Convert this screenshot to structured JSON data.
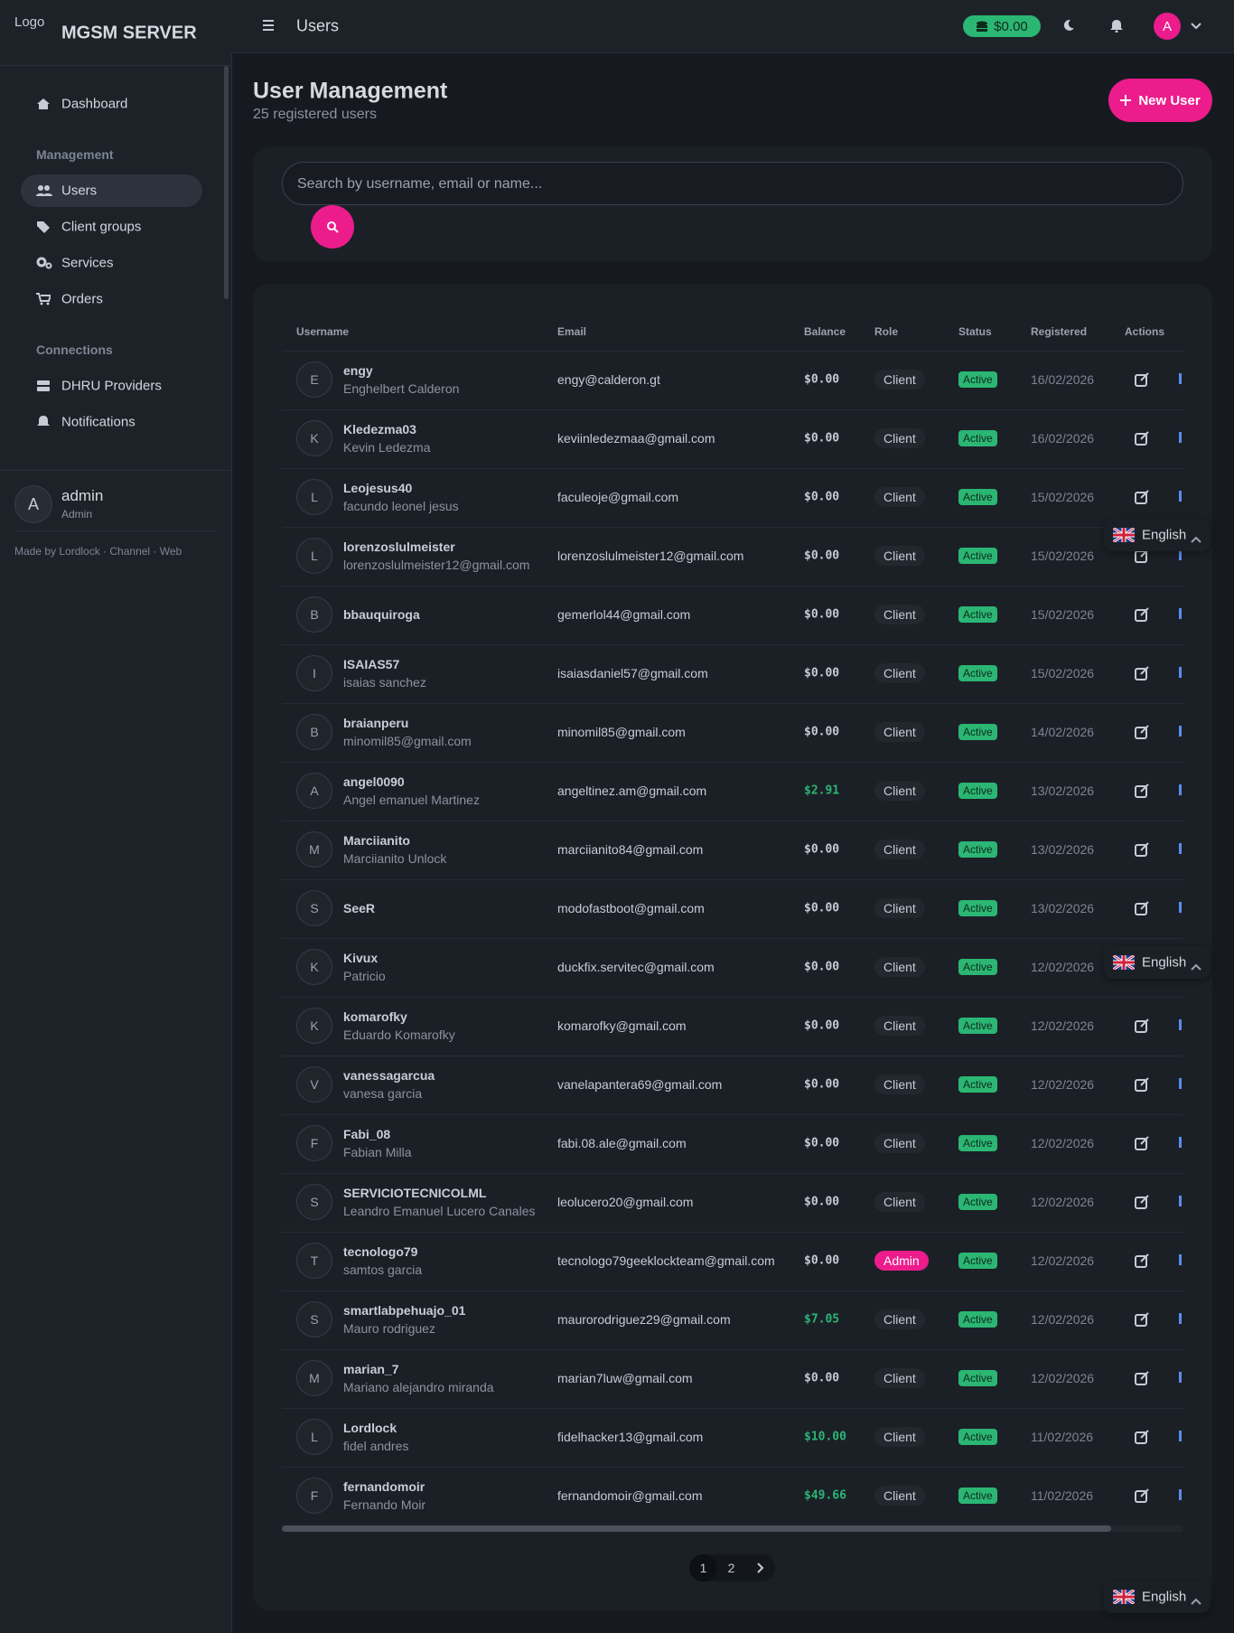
{
  "brand": {
    "logo_alt": "Logo",
    "name": "MGSM SERVER"
  },
  "topbar": {
    "title": "Users",
    "balance": "$0.00",
    "avatar": "A"
  },
  "sidebar": {
    "items": [
      {
        "label": "Dashboard"
      },
      {
        "section": "Management"
      },
      {
        "label": "Users",
        "active": true
      },
      {
        "label": "Client groups"
      },
      {
        "label": "Services"
      },
      {
        "label": "Orders"
      },
      {
        "section": "Connections"
      },
      {
        "label": "DHRU Providers"
      },
      {
        "label": "Notifications"
      }
    ]
  },
  "user": {
    "avatar": "A",
    "name": "admin",
    "role": "Admin"
  },
  "footer": {
    "credit": "Made by Lordlock · Channel · Web"
  },
  "page": {
    "title": "User Management",
    "subtitle": "25 registered users",
    "new_user": "New User",
    "search_placeholder": "Search by username, email or name..."
  },
  "table": {
    "columns": [
      "Username",
      "Email",
      "Balance",
      "Role",
      "Status",
      "Registered",
      "Actions"
    ],
    "rows": [
      {
        "initial": "E",
        "username": "engy",
        "name": "Enghelbert Calderon",
        "email": "engy@calderon.gt",
        "balance": "$0.00",
        "role": "Client",
        "status": "Active",
        "registered": "16/02/2026"
      },
      {
        "initial": "K",
        "username": "Kledezma03",
        "name": "Kevin Ledezma",
        "email": "keviinledezmaa@gmail.com",
        "balance": "$0.00",
        "role": "Client",
        "status": "Active",
        "registered": "16/02/2026"
      },
      {
        "initial": "L",
        "username": "Leojesus40",
        "name": "facundo leonel jesus",
        "email": "faculeoje@gmail.com",
        "balance": "$0.00",
        "role": "Client",
        "status": "Active",
        "registered": "15/02/2026"
      },
      {
        "initial": "L",
        "username": "lorenzoslulmeister",
        "name": "lorenzoslulmeister12@gmail.com",
        "email": "lorenzoslulmeister12@gmail.com",
        "balance": "$0.00",
        "role": "Client",
        "status": "Active",
        "registered": "15/02/2026"
      },
      {
        "initial": "B",
        "username": "bbauquiroga",
        "email": "gemerlol44@gmail.com",
        "balance": "$0.00",
        "role": "Client",
        "status": "Active",
        "registered": "15/02/2026"
      },
      {
        "initial": "I",
        "username": "ISAIAS57",
        "name": "isaias sanchez",
        "email": "isaiasdaniel57@gmail.com",
        "balance": "$0.00",
        "role": "Client",
        "status": "Active",
        "registered": "15/02/2026"
      },
      {
        "initial": "B",
        "username": "braianperu",
        "name": "minomil85@gmail.com",
        "email": "minomil85@gmail.com",
        "balance": "$0.00",
        "role": "Client",
        "status": "Active",
        "registered": "14/02/2026"
      },
      {
        "initial": "A",
        "username": "angel0090",
        "name": "Angel emanuel Martinez",
        "email": "angeltinez.am@gmail.com",
        "balance": "$2.91",
        "role": "Client",
        "status": "Active",
        "registered": "13/02/2026"
      },
      {
        "initial": "M",
        "username": "Marciianito",
        "name": "Marciianito Unlock",
        "email": "marciianito84@gmail.com",
        "balance": "$0.00",
        "role": "Client",
        "status": "Active",
        "registered": "13/02/2026"
      },
      {
        "initial": "S",
        "username": "SeeR",
        "email": "modofastboot@gmail.com",
        "balance": "$0.00",
        "role": "Client",
        "status": "Active",
        "registered": "13/02/2026"
      },
      {
        "initial": "K",
        "username": "Kivux",
        "name": "Patricio",
        "email": "duckfix.servitec@gmail.com",
        "balance": "$0.00",
        "role": "Client",
        "status": "Active",
        "registered": "12/02/2026"
      },
      {
        "initial": "K",
        "username": "komarofky",
        "name": "Eduardo Komarofky",
        "email": "komarofky@gmail.com",
        "balance": "$0.00",
        "role": "Client",
        "status": "Active",
        "registered": "12/02/2026"
      },
      {
        "initial": "V",
        "username": "vanessagarcua",
        "name": "vanesa garcia",
        "email": "vanelapantera69@gmail.com",
        "balance": "$0.00",
        "role": "Client",
        "status": "Active",
        "registered": "12/02/2026"
      },
      {
        "initial": "F",
        "username": "Fabi_08",
        "name": "Fabian Milla",
        "email": "fabi.08.ale@gmail.com",
        "balance": "$0.00",
        "role": "Client",
        "status": "Active",
        "registered": "12/02/2026"
      },
      {
        "initial": "S",
        "username": "SERVICIOTECNICOLML",
        "name": "Leandro Emanuel Lucero Canales",
        "email": "leolucero20@gmail.com",
        "balance": "$0.00",
        "role": "Client",
        "status": "Active",
        "registered": "12/02/2026"
      },
      {
        "initial": "T",
        "username": "tecnologo79",
        "name": "samtos garcia",
        "email": "tecnologo79geeklockteam@gmail.com",
        "balance": "$0.00",
        "role": "Admin",
        "status": "Active",
        "registered": "12/02/2026"
      },
      {
        "initial": "S",
        "username": "smartlabpehuajo_01",
        "name": "Mauro rodriguez",
        "email": "maurorodriguez29@gmail.com",
        "balance": "$7.05",
        "role": "Client",
        "status": "Active",
        "registered": "12/02/2026"
      },
      {
        "initial": "M",
        "username": "marian_7",
        "name": "Mariano alejandro miranda",
        "email": "marian7luw@gmail.com",
        "balance": "$0.00",
        "role": "Client",
        "status": "Active",
        "registered": "12/02/2026"
      },
      {
        "initial": "L",
        "username": "Lordlock",
        "name": "fidel andres",
        "email": "fidelhacker13@gmail.com",
        "balance": "$10.00",
        "role": "Client",
        "status": "Active",
        "registered": "11/02/2026"
      },
      {
        "initial": "F",
        "username": "fernandomoir",
        "name": "Fernando Moir",
        "email": "fernandomoir@gmail.com",
        "balance": "$49.66",
        "role": "Client",
        "status": "Active",
        "registered": "11/02/2026"
      }
    ]
  },
  "pagination": {
    "pages": [
      "1",
      "2"
    ],
    "current": 0
  },
  "language": "English"
}
